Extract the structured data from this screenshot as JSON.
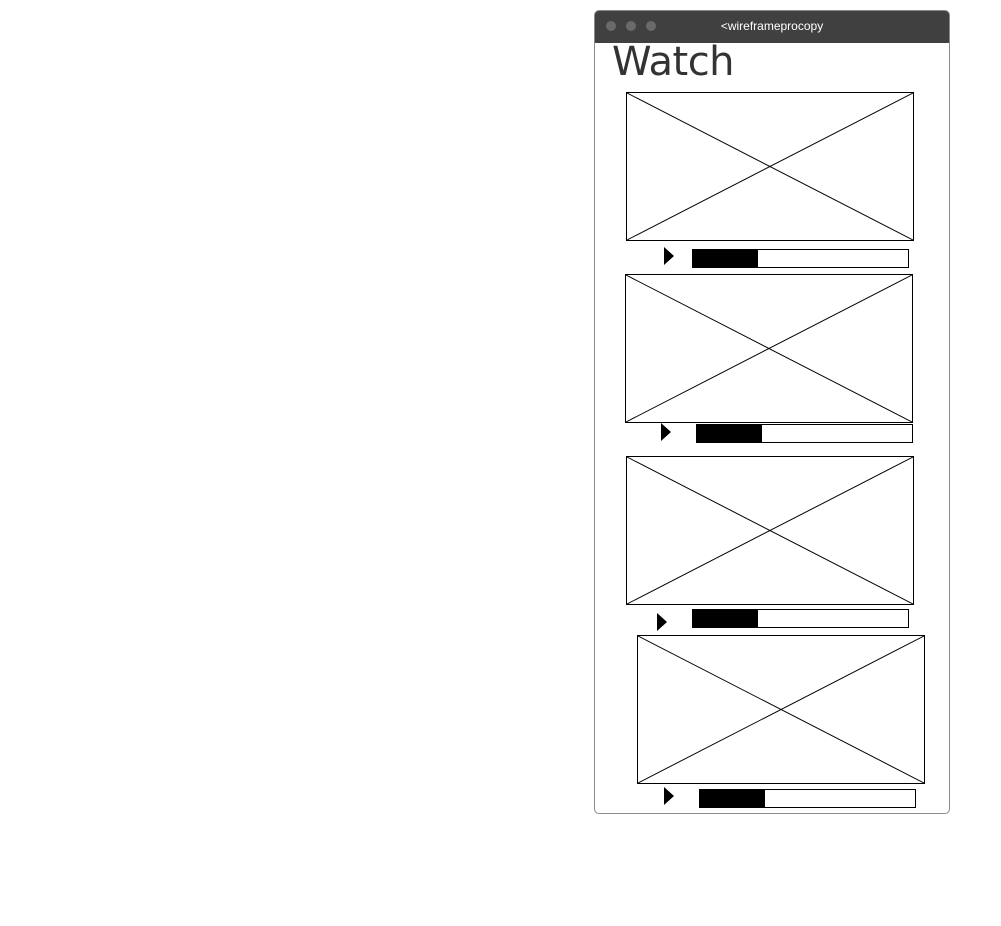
{
  "window": {
    "title": "<wireframeprocopy"
  },
  "page": {
    "title": "Watch"
  },
  "videos": [
    {
      "progress": 0.3
    },
    {
      "progress": 0.3
    },
    {
      "progress": 0.3
    },
    {
      "progress": 0.3
    }
  ],
  "colors": {
    "titlebar": "#404040",
    "title_text": "#333333",
    "wire": "#000000"
  }
}
